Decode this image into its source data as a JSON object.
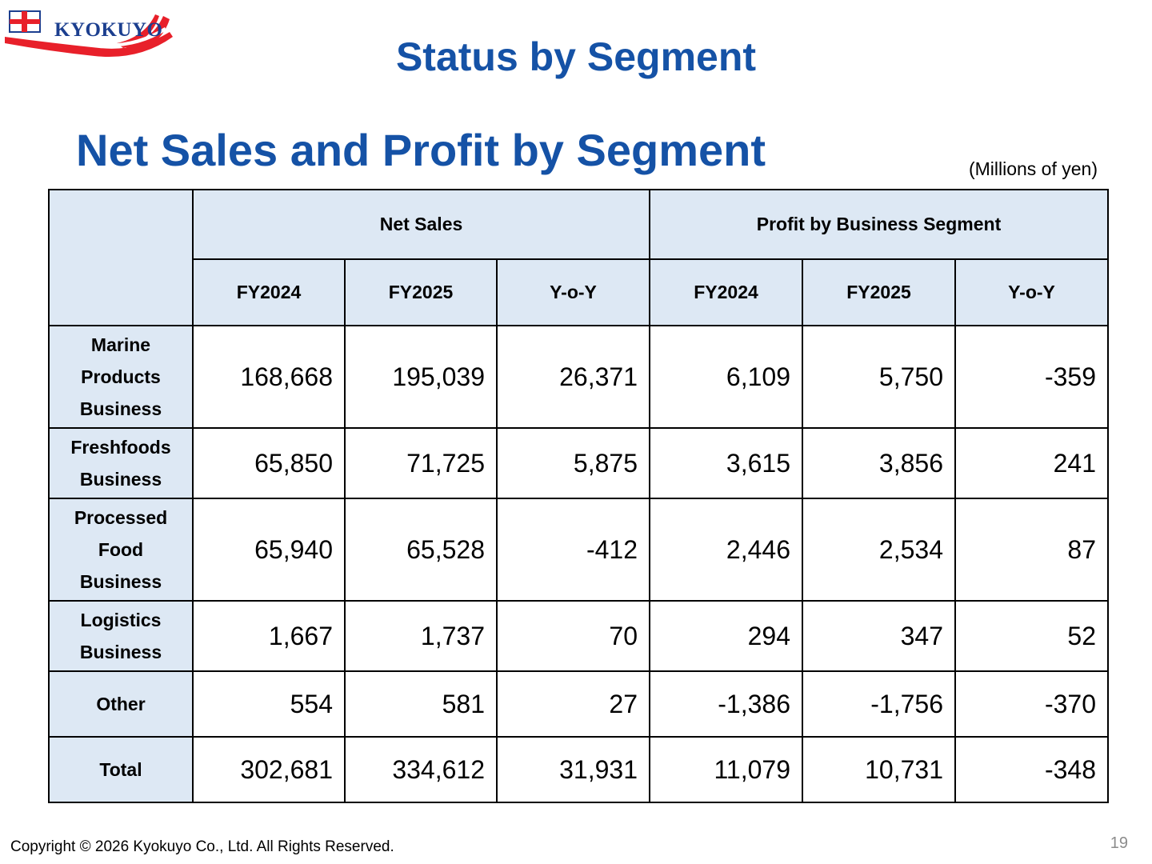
{
  "logo": {
    "text": "KYOKUYO"
  },
  "page_title": "Status by Segment",
  "section_title": "Net Sales and Profit by Segment",
  "units": "(Millions of yen)",
  "table": {
    "group_headers": [
      "Net Sales",
      "Profit by Business Segment"
    ],
    "sub_headers": [
      "FY2024",
      "FY2025",
      "Y-o-Y",
      "FY2024",
      "FY2025",
      "Y-o-Y"
    ],
    "rows": [
      {
        "label": "Marine\nProducts\nBusiness",
        "values": [
          "168,668",
          "195,039",
          "26,371",
          "6,109",
          "5,750",
          "-359"
        ]
      },
      {
        "label": "Freshfoods\nBusiness",
        "values": [
          "65,850",
          "71,725",
          "5,875",
          "3,615",
          "3,856",
          "241"
        ]
      },
      {
        "label": "Processed\nFood\nBusiness",
        "values": [
          "65,940",
          "65,528",
          "-412",
          "2,446",
          "2,534",
          "87"
        ]
      },
      {
        "label": "Logistics\nBusiness",
        "values": [
          "1,667",
          "1,737",
          "70",
          "294",
          "347",
          "52"
        ]
      },
      {
        "label": "Other",
        "values": [
          "554",
          "581",
          "27",
          "-1,386",
          "-1,756",
          "-370"
        ]
      },
      {
        "label": "Total",
        "values": [
          "302,681",
          "334,612",
          "31,931",
          "11,079",
          "10,731",
          "-348"
        ]
      }
    ]
  },
  "footer": {
    "copyright": "Copyright © 2026 Kyokuyo Co., Ltd. All Rights Reserved.",
    "page_number": "19"
  },
  "colors": {
    "title_blue": "#1552a6",
    "header_fill": "#dde8f4",
    "logo_red": "#e8202a",
    "logo_navy": "#1c3f8f"
  }
}
